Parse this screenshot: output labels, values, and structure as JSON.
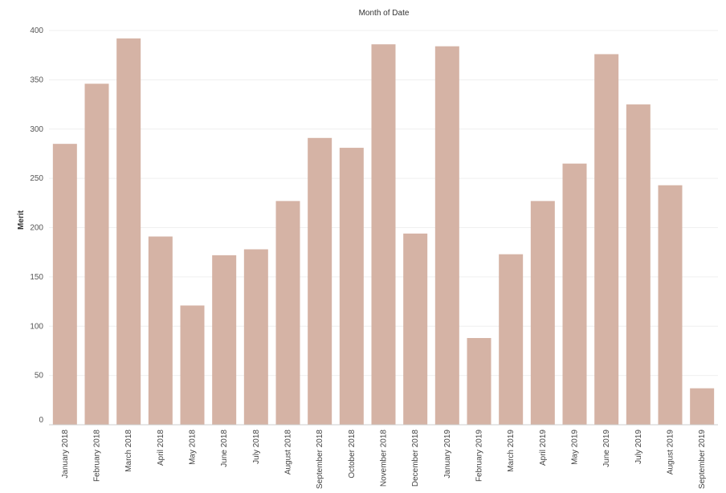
{
  "chart_data": {
    "type": "bar",
    "title": "Month of Date",
    "xlabel": "",
    "ylabel": "Merit",
    "ylim": [
      0,
      400
    ],
    "yticks": [
      0,
      50,
      100,
      150,
      200,
      250,
      300,
      350,
      400
    ],
    "grid": true,
    "bar_color": "#d5b3a5",
    "categories": [
      "January 2018",
      "February 2018",
      "March 2018",
      "April 2018",
      "May 2018",
      "June 2018",
      "July 2018",
      "August 2018",
      "September 2018",
      "October 2018",
      "November 2018",
      "December 2018",
      "January 2019",
      "February 2019",
      "March 2019",
      "April 2019",
      "May 2019",
      "June 2019",
      "July 2019",
      "August 2019",
      "September 2019"
    ],
    "values": [
      285,
      346,
      392,
      191,
      121,
      172,
      178,
      227,
      291,
      281,
      386,
      194,
      384,
      88,
      173,
      227,
      265,
      376,
      325,
      243,
      37
    ]
  }
}
